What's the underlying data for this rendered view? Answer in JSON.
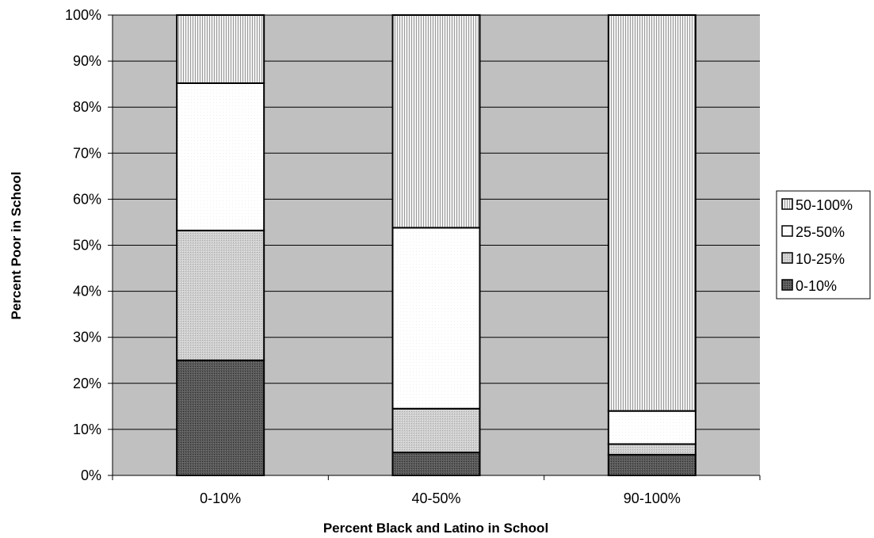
{
  "chart_data": {
    "type": "bar",
    "stacked": true,
    "title": "",
    "xlabel": "Percent Black and Latino in School",
    "ylabel": "Percent Poor in School",
    "categories": [
      "0-10%",
      "40-50%",
      "90-100%"
    ],
    "ylim": [
      0,
      100
    ],
    "y_ticks": [
      0,
      10,
      20,
      30,
      40,
      50,
      60,
      70,
      80,
      90,
      100
    ],
    "y_tick_labels": [
      "0%",
      "10%",
      "20%",
      "30%",
      "40%",
      "50%",
      "60%",
      "70%",
      "80%",
      "90%",
      "100%"
    ],
    "grid": true,
    "legend_position": "right",
    "plot_background": "#c0c0c0",
    "series": [
      {
        "name": "0-10%",
        "values": [
          25,
          5,
          4.5
        ],
        "color": "#555555",
        "pattern": "dark-dots"
      },
      {
        "name": "10-25%",
        "values": [
          28.2,
          9.5,
          2.3
        ],
        "color": "#c8c8c8",
        "pattern": "light-dots"
      },
      {
        "name": "25-50%",
        "values": [
          32,
          39.3,
          7.2
        ],
        "color": "#ffffff",
        "pattern": "white"
      },
      {
        "name": "50-100%",
        "values": [
          14.8,
          46.2,
          86
        ],
        "color": "#e4e4e4",
        "pattern": "vertical-lines"
      }
    ]
  }
}
